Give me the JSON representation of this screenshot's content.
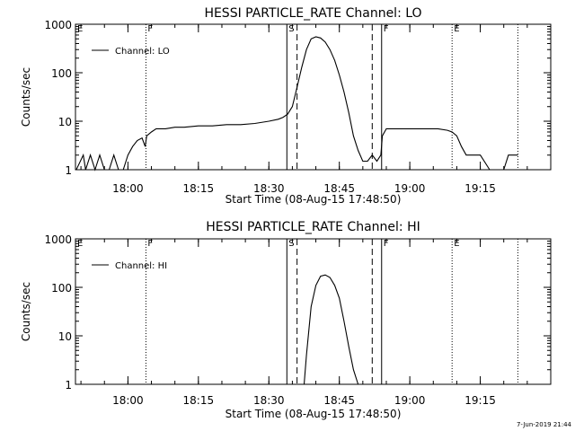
{
  "footer_timestamp": "7-Jun-2019 21:44",
  "chart_data": [
    {
      "type": "line",
      "title": "HESSI PARTICLE_RATE Channel: LO",
      "xlabel": "Start Time (08-Aug-15 17:48:50)",
      "ylabel": "Counts/sec",
      "y_scale": "log",
      "ylim": [
        1,
        1000
      ],
      "xlim": [
        "17:48:50",
        "19:30:00"
      ],
      "x_ticks": [
        "18:00",
        "18:15",
        "18:30",
        "18:45",
        "19:00",
        "19:15"
      ],
      "y_ticks": [
        "1",
        "10",
        "100",
        "1000"
      ],
      "legend": {
        "position": "top-left",
        "entry": "Channel: LO"
      },
      "vertical_markers": [
        {
          "time": "17:48:50",
          "style": "dotted",
          "label": "E"
        },
        {
          "time": "18:03:50",
          "style": "dotted",
          "label": "F"
        },
        {
          "time": "18:33:50",
          "style": "solid",
          "label": "S"
        },
        {
          "time": "18:36:00",
          "style": "dashed",
          "label": ""
        },
        {
          "time": "18:52:00",
          "style": "dashed",
          "label": ""
        },
        {
          "time": "18:54:00",
          "style": "solid",
          "label": "F"
        },
        {
          "time": "19:09:00",
          "style": "dotted",
          "label": "E"
        },
        {
          "time": "19:23:00",
          "style": "dotted",
          "label": ""
        }
      ],
      "series": [
        {
          "x": [
            "17:49:00",
            "17:50:30",
            "17:51:00",
            "17:52:00",
            "17:53:00",
            "17:54:00",
            "17:55:00",
            "17:56:00",
            "17:57:00",
            "17:58:00",
            "17:59:00",
            "18:00:00",
            "18:01:00",
            "18:02:00",
            "18:03:00",
            "18:03:40",
            "18:04:00",
            "18:05:00",
            "18:06:00",
            "18:08:00",
            "18:10:00",
            "18:12:00",
            "18:15:00",
            "18:18:00",
            "18:21:00",
            "18:24:00",
            "18:27:00",
            "18:30:00",
            "18:32:00",
            "18:33:00",
            "18:34:00",
            "18:35:00",
            "18:36:00",
            "18:37:00",
            "18:38:00",
            "18:39:00",
            "18:40:00",
            "18:41:00",
            "18:42:00",
            "18:43:00",
            "18:44:00",
            "18:45:00",
            "18:46:00",
            "18:47:00",
            "18:48:00",
            "18:49:00",
            "18:50:00",
            "18:51:00",
            "18:52:00",
            "18:53:00",
            "18:53:50",
            "18:54:10",
            "18:55:00",
            "18:57:00",
            "19:00:00",
            "19:03:00",
            "19:06:00",
            "19:08:00",
            "19:09:00",
            "19:10:00",
            "19:11:00",
            "19:12:00",
            "19:13:00",
            "19:15:00",
            "19:17:00",
            "19:19:00",
            "19:20:00",
            "19:21:00",
            "19:22:00",
            "19:22:30",
            "19:23:00"
          ],
          "values": [
            1,
            2,
            1,
            2,
            1,
            2,
            1,
            1,
            2,
            1,
            1,
            2,
            3,
            4,
            4.5,
            3,
            5,
            6,
            7,
            7,
            7.5,
            7.5,
            8,
            8,
            8.5,
            8.5,
            9,
            10,
            11,
            12,
            14,
            20,
            50,
            130,
            300,
            500,
            550,
            520,
            430,
            300,
            180,
            90,
            40,
            15,
            5,
            2.5,
            1.5,
            1.5,
            2,
            1.5,
            2,
            5,
            7,
            7,
            7,
            7,
            7,
            6.5,
            6,
            5,
            3,
            2,
            2,
            2,
            1,
            1,
            1,
            2,
            2,
            2,
            2
          ]
        }
      ]
    },
    {
      "type": "line",
      "title": "HESSI PARTICLE_RATE Channel: HI",
      "xlabel": "Start Time (08-Aug-15 17:48:50)",
      "ylabel": "Counts/sec",
      "y_scale": "log",
      "ylim": [
        1,
        1000
      ],
      "xlim": [
        "17:48:50",
        "19:30:00"
      ],
      "x_ticks": [
        "18:00",
        "18:15",
        "18:30",
        "18:45",
        "19:00",
        "19:15"
      ],
      "y_ticks": [
        "1",
        "10",
        "100",
        "1000"
      ],
      "legend": {
        "position": "top-left",
        "entry": "Channel: HI"
      },
      "vertical_markers": [
        {
          "time": "17:48:50",
          "style": "dotted",
          "label": "E"
        },
        {
          "time": "18:03:50",
          "style": "dotted",
          "label": "F"
        },
        {
          "time": "18:33:50",
          "style": "solid",
          "label": "S"
        },
        {
          "time": "18:36:00",
          "style": "dashed",
          "label": ""
        },
        {
          "time": "18:52:00",
          "style": "dashed",
          "label": ""
        },
        {
          "time": "18:54:00",
          "style": "solid",
          "label": "F"
        },
        {
          "time": "19:09:00",
          "style": "dotted",
          "label": "E"
        },
        {
          "time": "19:23:00",
          "style": "dotted",
          "label": ""
        }
      ],
      "series": [
        {
          "x": [
            "18:37:30",
            "18:38:00",
            "18:39:00",
            "18:40:00",
            "18:41:00",
            "18:42:00",
            "18:43:00",
            "18:44:00",
            "18:45:00",
            "18:46:00",
            "18:47:00",
            "18:48:00",
            "18:49:00"
          ],
          "values": [
            1,
            4,
            40,
            110,
            170,
            180,
            160,
            110,
            60,
            20,
            6,
            2,
            1
          ]
        }
      ]
    }
  ]
}
